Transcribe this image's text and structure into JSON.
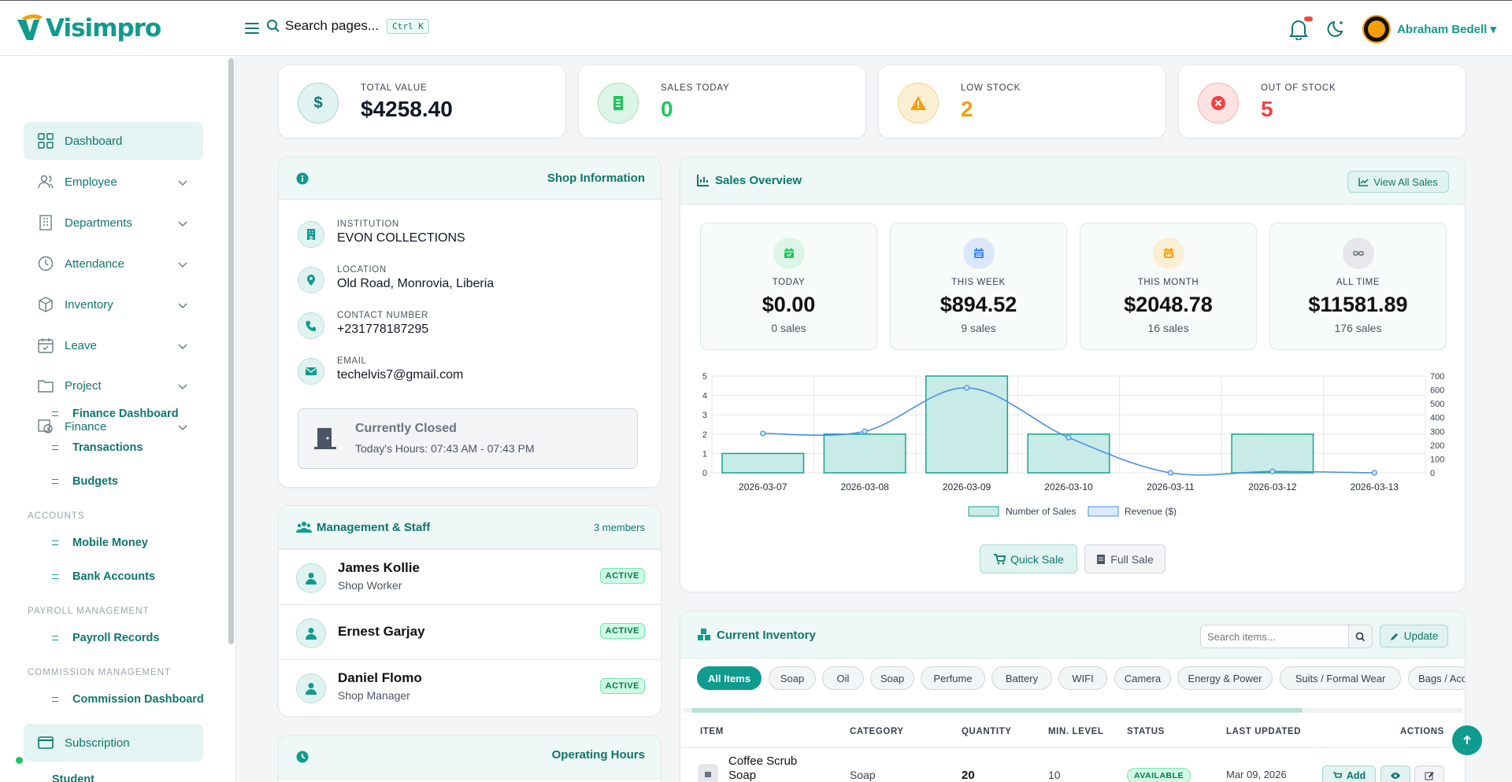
{
  "app": {
    "logo_text": "Visimpro"
  },
  "topbar": {
    "search_placeholder": "Search pages...",
    "shortcut": "Ctrl K",
    "user_name": "Abraham Bedell"
  },
  "sidebar": {
    "items": [
      {
        "label": "Dashboard",
        "icon": "grid-icon",
        "active": true
      },
      {
        "label": "Employee",
        "icon": "users-icon"
      },
      {
        "label": "Departments",
        "icon": "building-icon"
      },
      {
        "label": "Attendance",
        "icon": "clock-icon"
      },
      {
        "label": "Inventory",
        "icon": "box-icon"
      },
      {
        "label": "Leave",
        "icon": "calendar-icon"
      },
      {
        "label": "Project",
        "icon": "folder-icon"
      },
      {
        "label": "Finance",
        "icon": "finance-icon"
      }
    ],
    "finance_sub": [
      "Finance Dashboard",
      "Transactions",
      "Budgets"
    ],
    "sections": {
      "accounts": {
        "title": "ACCOUNTS",
        "items": [
          "Mobile Money",
          "Bank Accounts"
        ]
      },
      "payroll": {
        "title": "PAYROLL MANAGEMENT",
        "items": [
          "Payroll Records"
        ]
      },
      "commission": {
        "title": "COMMISSION MANAGEMENT",
        "items": [
          "Commission Dashboard"
        ]
      }
    },
    "subscription": "Subscription",
    "partial": "Student"
  },
  "stats": [
    {
      "label": "TOTAL VALUE",
      "value": "$4258.40",
      "color": "#111827",
      "icon": "dollar-icon"
    },
    {
      "label": "SALES TODAY",
      "value": "0",
      "color": "#22c55e",
      "icon": "receipt-icon"
    },
    {
      "label": "LOW STOCK",
      "value": "2",
      "color": "#f59e0b",
      "icon": "warning-icon"
    },
    {
      "label": "OUT OF STOCK",
      "value": "5",
      "color": "#ef4444",
      "icon": "x-circle-icon"
    }
  ],
  "shop": {
    "title": "Shop Information",
    "rows": [
      {
        "label": "INSTITUTION",
        "value": "EVON COLLECTIONS"
      },
      {
        "label": "LOCATION",
        "value": "Old Road, Monrovia, Liberia"
      },
      {
        "label": "CONTACT NUMBER",
        "value": "+231778187295"
      },
      {
        "label": "EMAIL",
        "value": "techelvis7@gmail.com"
      }
    ],
    "status": "Currently Closed",
    "hours": "Today's Hours: 07:43 AM - 07:43 PM"
  },
  "staff": {
    "title": "Management & Staff",
    "count": "3 members",
    "members": [
      {
        "name": "James Kollie",
        "role": "Shop Worker",
        "status": "ACTIVE"
      },
      {
        "name": "Ernest Garjay",
        "role": "",
        "status": "ACTIVE"
      },
      {
        "name": "Daniel Flomo",
        "role": "Shop Manager",
        "status": "ACTIVE"
      }
    ]
  },
  "hours_card": {
    "title": "Operating Hours"
  },
  "sales": {
    "title": "Sales Overview",
    "view_all": "View All Sales",
    "periods": [
      {
        "label": "TODAY",
        "value": "$0.00",
        "sub": "0 sales",
        "color": "#22c55e",
        "bg": "#dcf5e6"
      },
      {
        "label": "THIS WEEK",
        "value": "$894.52",
        "sub": "9 sales",
        "color": "#3b82f6",
        "bg": "#dbe8fb"
      },
      {
        "label": "THIS MONTH",
        "value": "$2048.78",
        "sub": "16 sales",
        "color": "#f59e0b",
        "bg": "#fbefd3"
      },
      {
        "label": "ALL TIME",
        "value": "$11581.89",
        "sub": "176 sales",
        "color": "#6b7280",
        "bg": "#e5e7eb"
      }
    ],
    "quick_sale": "Quick Sale",
    "full_sale": "Full Sale"
  },
  "chart_data": {
    "type": "bar",
    "categories": [
      "2026-03-07",
      "2026-03-08",
      "2026-03-09",
      "2026-03-10",
      "2026-03-11",
      "2026-03-12",
      "2026-03-13"
    ],
    "series": [
      {
        "name": "Number of Sales",
        "type": "bar",
        "axis": "left",
        "values": [
          1,
          2,
          5,
          2,
          0,
          2,
          0
        ]
      },
      {
        "name": "Revenue ($)",
        "type": "line",
        "axis": "right",
        "values": [
          285,
          300,
          615,
          255,
          0,
          10,
          0
        ]
      }
    ],
    "y_left": {
      "ticks": [
        0,
        1,
        2,
        3,
        4,
        5
      ],
      "ylim": [
        0,
        5
      ]
    },
    "y_right": {
      "ticks": [
        0,
        100,
        200,
        300,
        400,
        500,
        600,
        700
      ],
      "ylim": [
        0,
        700
      ]
    },
    "grid": true,
    "legend": "bottom",
    "colors": {
      "bar_fill": "#c8ebe7",
      "bar_stroke": "#14a394",
      "line": "#4a90e2"
    }
  },
  "inventory": {
    "title": "Current Inventory",
    "search_placeholder": "Search items...",
    "update": "Update",
    "filters": [
      "All Items",
      "Soap",
      "Oil",
      "Soap",
      "Perfume",
      "Battery",
      "WIFI",
      "Camera",
      "Energy & Power",
      "Suits / Formal Wear",
      "Bags / Acc"
    ],
    "columns": [
      "ITEM",
      "CATEGORY",
      "QUANTITY",
      "MIN. LEVEL",
      "STATUS",
      "LAST UPDATED",
      "ACTIONS"
    ],
    "rows": [
      {
        "item": "Coffee Scrub",
        "item2": "Soap",
        "category": "Soap",
        "quantity": "20",
        "min": "10",
        "status": "AVAILABLE",
        "updated": "Mar 09, 2026",
        "add": "Add"
      }
    ]
  }
}
